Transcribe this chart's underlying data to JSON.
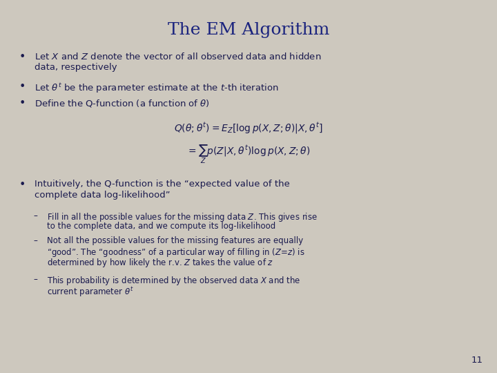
{
  "title": "The EM Algorithm",
  "title_color": "#1a237e",
  "title_fontsize": 18,
  "background_color": "#cdc8be",
  "text_color": "#1a1a4e",
  "page_number": "11",
  "fs_main": 9.5,
  "fs_sub": 8.5,
  "fs_formula": 10.0,
  "bullet1_line1": "Let $X$ and $Z$ denote the vector of all observed data and hidden",
  "bullet1_line2": "data, respectively",
  "bullet2_main": "Let $\\theta^t$ be the parameter estimate at the $t$-th iteration",
  "bullet3_main": "Define the Q-function (a function of $\\theta$)",
  "formula_line1": "$Q(\\theta;\\theta^t) = E_Z[\\log p(X,Z;\\theta)|X,\\theta^t]$",
  "formula_line2": "$= \\sum_Z p(Z|X,\\theta^t)\\log p(X,Z;\\theta)$",
  "bullet4_line1": "Intuitively, the Q-function is the “expected value of the",
  "bullet4_line2": "complete data log-likelihood”",
  "sub1_line1": "Fill in all the possible values for the missing data $Z$. This gives rise",
  "sub1_line2": "to the complete data, and we compute its log-likelihood",
  "sub2_line1": "Not all the possible values for the missing features are equally",
  "sub2_line2": "“good”. The “goodness” of a particular way of filling in ($Z$=$z$) is",
  "sub2_line3": "determined by how likely the r.v. $Z$ takes the value of $z$",
  "sub3_line1": "This probability is determined by the observed data $X$ and the",
  "sub3_line2": "current parameter $\\theta^t$"
}
